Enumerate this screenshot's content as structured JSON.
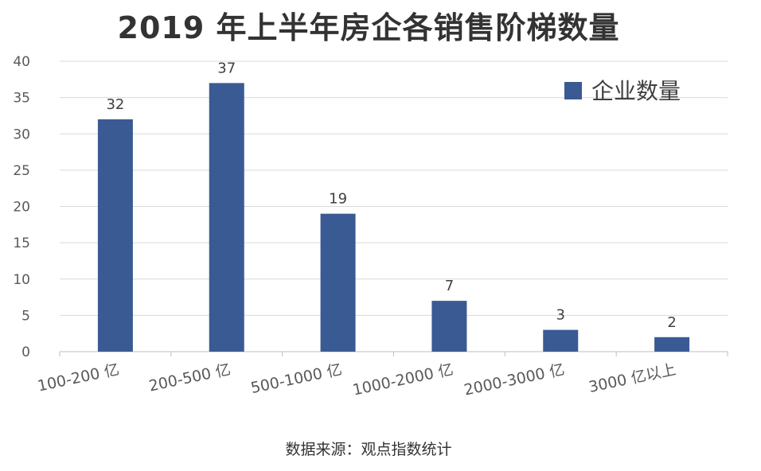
{
  "title": "2019 年上半年房企各销售阶梯数量",
  "source": "数据来源：观点指数统计",
  "colors": {
    "bar": "#3a5a94",
    "grid": "#d9d9d9",
    "axis": "#bfbfbf"
  },
  "chart_data": {
    "type": "bar",
    "categories": [
      "100-200 亿",
      "200-500 亿",
      "500-1000 亿",
      "1000-2000 亿",
      "2000-3000 亿",
      "3000 亿以上"
    ],
    "series": [
      {
        "name": "企业数量",
        "values": [
          32,
          37,
          19,
          7,
          3,
          2
        ]
      }
    ],
    "ylim": [
      0,
      40
    ],
    "yticks": [
      0,
      5,
      10,
      15,
      20,
      25,
      30,
      35,
      40
    ],
    "grid": true,
    "legend": "top-right",
    "data_labels": true
  }
}
